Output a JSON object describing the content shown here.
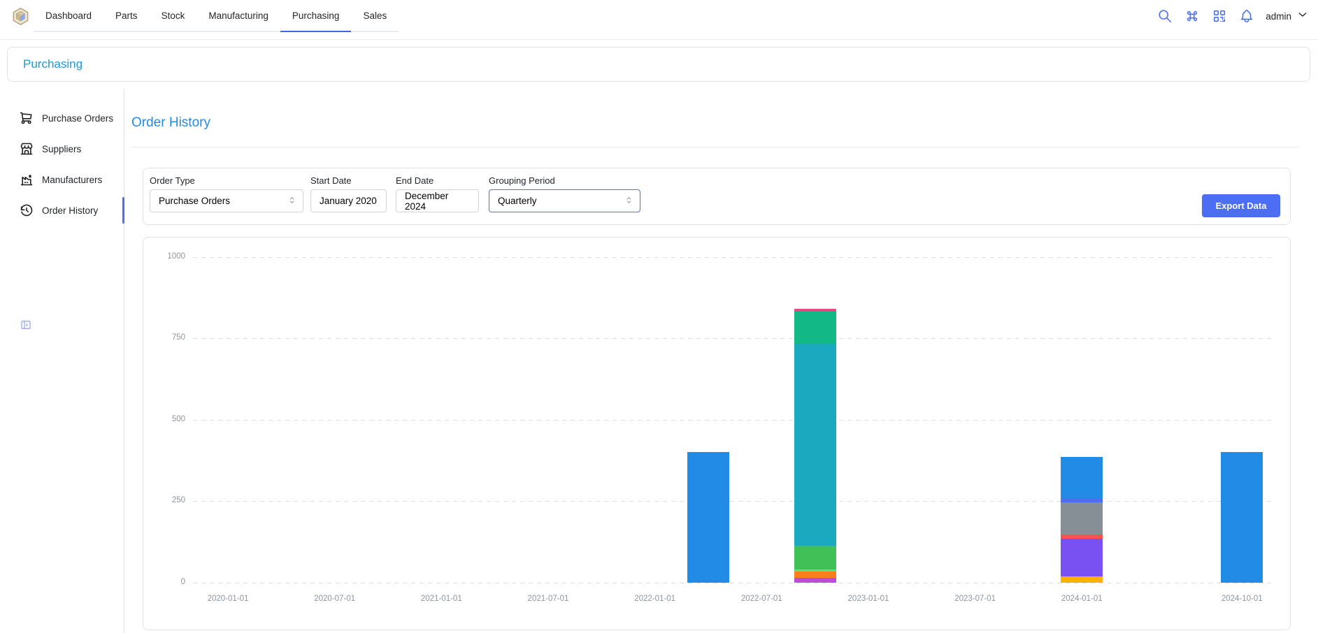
{
  "colors": {
    "accent": "#4c6ef5",
    "active_tab_underline": "#4263eb",
    "title_link": "#228be6",
    "breadcrumb_link": "#2098d1"
  },
  "header": {
    "nav_tabs": [
      {
        "label": "Dashboard",
        "active": false
      },
      {
        "label": "Parts",
        "active": false
      },
      {
        "label": "Stock",
        "active": false
      },
      {
        "label": "Manufacturing",
        "active": false
      },
      {
        "label": "Purchasing",
        "active": true
      },
      {
        "label": "Sales",
        "active": false
      }
    ],
    "icons": [
      "search-icon",
      "command-icon",
      "qrcode-icon",
      "bell-icon"
    ],
    "user": "admin"
  },
  "breadcrumb": {
    "label": "Purchasing"
  },
  "sidebar": {
    "items": [
      {
        "label": "Purchase Orders",
        "icon": "shopping-cart-icon",
        "active": false
      },
      {
        "label": "Suppliers",
        "icon": "building-store-icon",
        "active": false
      },
      {
        "label": "Manufacturers",
        "icon": "factory-icon",
        "active": false
      },
      {
        "label": "Order History",
        "icon": "history-icon",
        "active": true
      }
    ],
    "collapse_icon": "collapse-sidebar-icon"
  },
  "main": {
    "title": "Order History",
    "filters": {
      "order_type": {
        "label": "Order Type",
        "value": "Purchase Orders"
      },
      "start_date": {
        "label": "Start Date",
        "value": "January 2020"
      },
      "end_date": {
        "label": "End Date",
        "value": "December 2024"
      },
      "grouping": {
        "label": "Grouping Period",
        "value": "Quarterly",
        "focused": true
      },
      "export_label": "Export Data"
    }
  },
  "chart_data": {
    "type": "bar",
    "stacked": true,
    "title": "",
    "xlabel": "",
    "ylabel": "",
    "ylim": [
      0,
      1000
    ],
    "grid": true,
    "legend": false,
    "y_ticks": [
      0,
      250,
      500,
      750,
      1000
    ],
    "x_ticks": [
      "2020-01-01",
      "2020-07-01",
      "2021-01-01",
      "2021-07-01",
      "2022-01-01",
      "2022-07-01",
      "2023-01-01",
      "2023-07-01",
      "2024-01-01",
      "2024-10-01"
    ],
    "bars": [
      {
        "date": "2022-04-01",
        "total": 400,
        "segments": [
          {
            "color": "#228be6",
            "value": 400
          }
        ]
      },
      {
        "date": "2022-10-01",
        "total": 841,
        "segments": [
          {
            "color": "#be4bdb",
            "value": 15
          },
          {
            "color": "#fd7e14",
            "value": 20
          },
          {
            "color": "#69db7c",
            "value": 6
          },
          {
            "color": "#40c057",
            "value": 72
          },
          {
            "color": "#1aa9bf",
            "value": 620
          },
          {
            "color": "#12b886",
            "value": 98
          },
          {
            "color": "#e64980",
            "value": 10
          }
        ]
      },
      {
        "date": "2024-01-01",
        "total": 386,
        "segments": [
          {
            "color": "#fab005",
            "value": 19
          },
          {
            "color": "#7950f2",
            "value": 116
          },
          {
            "color": "#fa5252",
            "value": 13
          },
          {
            "color": "#868e96",
            "value": 99
          },
          {
            "color": "#4c6ef5",
            "value": 13
          },
          {
            "color": "#228be6",
            "value": 126
          }
        ]
      },
      {
        "date": "2024-10-01",
        "total": 400,
        "segments": [
          {
            "color": "#228be6",
            "value": 400
          }
        ]
      }
    ]
  }
}
